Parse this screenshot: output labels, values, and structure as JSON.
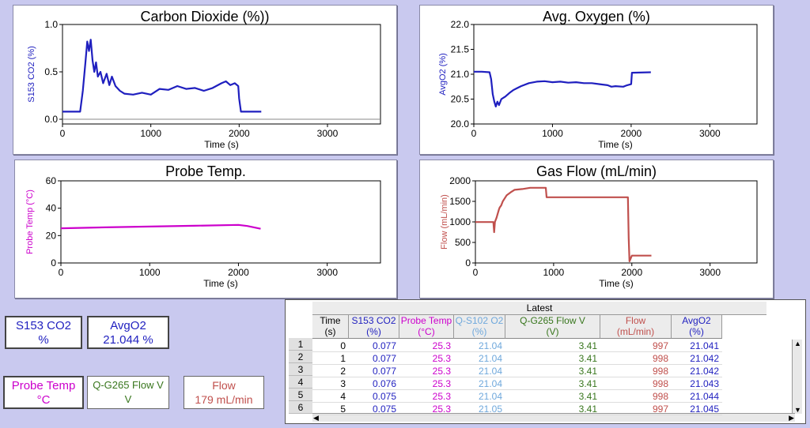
{
  "colors": {
    "co2": "#1f1fbf",
    "o2": "#1f1fbf",
    "probe": "#cc00cc",
    "flow": "#c0504d",
    "qs102": "#6fa8dc",
    "qg265": "#38761d",
    "time": "#000000"
  },
  "meters": {
    "co2": {
      "label": "S153 CO2",
      "value": "%"
    },
    "o2": {
      "label": "AvgO2",
      "value": "21.044 %"
    },
    "probe": {
      "label": "Probe Temp",
      "value": "°C"
    },
    "qg265": {
      "label": "Q-G265 Flow V",
      "value": "V"
    },
    "flow": {
      "label": "Flow",
      "value": "179 mL/min"
    }
  },
  "table": {
    "group_header": "Latest",
    "columns": [
      {
        "line1": "Time",
        "line2": "(s)",
        "color": "#000000"
      },
      {
        "line1": "S153 CO2",
        "line2": "(%)",
        "color": "#1f1fbf"
      },
      {
        "line1": "Probe Temp",
        "line2": "(°C)",
        "color": "#cc00cc"
      },
      {
        "line1": "Q-S102 O2",
        "line2": "(%)",
        "color": "#6fa8dc"
      },
      {
        "line1": "Q-G265 Flow V",
        "line2": "(V)",
        "color": "#38761d"
      },
      {
        "line1": "Flow",
        "line2": "(mL/min)",
        "color": "#c0504d"
      },
      {
        "line1": "AvgO2",
        "line2": "(%)",
        "color": "#1f1fbf"
      }
    ],
    "row_numbers": [
      "1",
      "2",
      "3",
      "4",
      "5",
      "6"
    ],
    "rows": [
      [
        "0",
        "0.077",
        "25.3",
        "21.04",
        "3.41",
        "997",
        "21.041"
      ],
      [
        "1",
        "0.077",
        "25.3",
        "21.04",
        "3.41",
        "998",
        "21.042"
      ],
      [
        "2",
        "0.077",
        "25.3",
        "21.04",
        "3.41",
        "998",
        "21.042"
      ],
      [
        "3",
        "0.076",
        "25.3",
        "21.04",
        "3.41",
        "998",
        "21.043"
      ],
      [
        "4",
        "0.075",
        "25.3",
        "21.04",
        "3.41",
        "998",
        "21.044"
      ],
      [
        "5",
        "0.075",
        "25.3",
        "21.05",
        "3.41",
        "997",
        "21.045"
      ]
    ]
  },
  "chart_data": [
    {
      "type": "line",
      "title": "Carbon Dioxide (%))",
      "xlabel": "Time (s)",
      "ylabel": "S153 CO2 (%)",
      "xlim": [
        0,
        3600
      ],
      "ylim": [
        -0.05,
        1.0
      ],
      "xticks": [
        "0",
        "1000",
        "2000",
        "3000"
      ],
      "yticks": [
        "0.0",
        "0.5",
        "1.0"
      ],
      "color": "#1f1fbf",
      "baseline": 0.0,
      "series": [
        {
          "x": [
            0,
            200,
            230,
            260,
            280,
            300,
            320,
            340,
            360,
            380,
            400,
            430,
            460,
            500,
            530,
            560,
            600,
            650,
            700,
            800,
            900,
            1000,
            1100,
            1200,
            1300,
            1400,
            1500,
            1600,
            1700,
            1800,
            1850,
            1900,
            1950,
            1990,
            2000,
            2020,
            2250
          ],
          "y": [
            0.08,
            0.08,
            0.3,
            0.6,
            0.82,
            0.72,
            0.84,
            0.62,
            0.5,
            0.6,
            0.45,
            0.5,
            0.38,
            0.48,
            0.36,
            0.45,
            0.35,
            0.3,
            0.27,
            0.26,
            0.28,
            0.26,
            0.32,
            0.31,
            0.35,
            0.32,
            0.33,
            0.3,
            0.33,
            0.38,
            0.4,
            0.36,
            0.38,
            0.35,
            0.22,
            0.08,
            0.08
          ]
        }
      ]
    },
    {
      "type": "line",
      "title": "Avg. Oxygen (%)",
      "xlabel": "Time (s)",
      "ylabel": "AvgO2 (%)",
      "xlim": [
        0,
        3600
      ],
      "ylim": [
        20.0,
        22.0
      ],
      "xticks": [
        "0",
        "1000",
        "2000",
        "3000"
      ],
      "yticks": [
        "20.0",
        "20.5",
        "21.0",
        "21.5",
        "22.0"
      ],
      "color": "#1f1fbf",
      "series": [
        {
          "x": [
            0,
            100,
            200,
            220,
            240,
            260,
            280,
            300,
            320,
            350,
            400,
            450,
            500,
            550,
            600,
            700,
            800,
            900,
            1000,
            1100,
            1200,
            1300,
            1400,
            1500,
            1600,
            1700,
            1750,
            1800,
            1900,
            1950,
            2000,
            2010,
            2250
          ],
          "y": [
            21.05,
            21.05,
            21.04,
            20.9,
            20.6,
            20.45,
            20.35,
            20.45,
            20.38,
            20.5,
            20.55,
            20.62,
            20.68,
            20.72,
            20.76,
            20.82,
            20.85,
            20.86,
            20.84,
            20.85,
            20.83,
            20.84,
            20.82,
            20.82,
            20.8,
            20.78,
            20.75,
            20.76,
            20.75,
            20.78,
            20.8,
            21.03,
            21.04
          ]
        }
      ]
    },
    {
      "type": "line",
      "title": "Probe Temp.",
      "xlabel": "Time (s)",
      "ylabel": "Probe Temp (°C)",
      "xlim": [
        0,
        3600
      ],
      "ylim": [
        0,
        60
      ],
      "xticks": [
        "0",
        "1000",
        "2000",
        "3000"
      ],
      "yticks": [
        "0",
        "20",
        "40",
        "60"
      ],
      "color": "#cc00cc",
      "series": [
        {
          "x": [
            0,
            500,
            1000,
            1500,
            2000,
            2100,
            2250
          ],
          "y": [
            25.3,
            26.0,
            26.6,
            27.2,
            27.8,
            27.0,
            25.0
          ]
        }
      ]
    },
    {
      "type": "line",
      "title": "Gas Flow (mL/min)",
      "xlabel": "Time (s)",
      "ylabel": "Flow (mL/min)",
      "xlim": [
        0,
        3600
      ],
      "ylim": [
        0,
        2000
      ],
      "xticks": [
        "0",
        "1000",
        "2000",
        "3000"
      ],
      "yticks": [
        "0",
        "500",
        "1000",
        "1500",
        "2000"
      ],
      "color": "#c0504d",
      "series": [
        {
          "x": [
            0,
            230,
            240,
            250,
            270,
            300,
            310,
            330,
            350,
            400,
            450,
            500,
            600,
            700,
            800,
            900,
            910,
            1500,
            1900,
            1950,
            1960,
            1970,
            2000,
            2250
          ],
          "y": [
            997,
            997,
            750,
            1000,
            1100,
            1300,
            1350,
            1400,
            1500,
            1650,
            1720,
            1780,
            1800,
            1830,
            1830,
            1830,
            1600,
            1600,
            1600,
            1600,
            600,
            40,
            179,
            179
          ]
        }
      ]
    }
  ]
}
